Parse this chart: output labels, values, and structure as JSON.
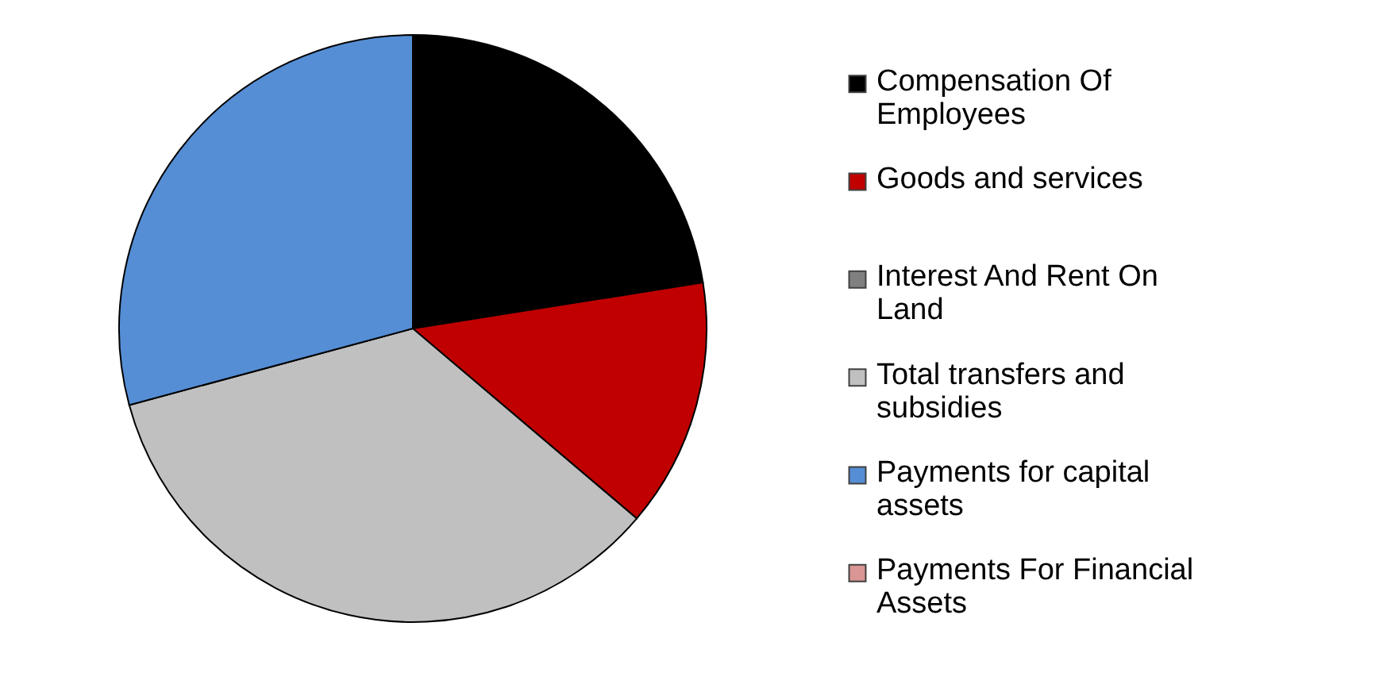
{
  "chart_data": {
    "type": "pie",
    "categories": [
      "Compensation Of Employees",
      "Goods and services",
      "Interest And Rent On Land",
      "Total transfers and subsidies",
      "Payments for capital assets",
      "Payments For Financial Assets"
    ],
    "values": [
      22.5,
      13.7,
      0,
      34.6,
      29.2,
      0
    ],
    "colors": [
      "#000000",
      "#c00000",
      "#808080",
      "#c0c0c0",
      "#558ed5",
      "#d99694"
    ],
    "legend": "right"
  }
}
